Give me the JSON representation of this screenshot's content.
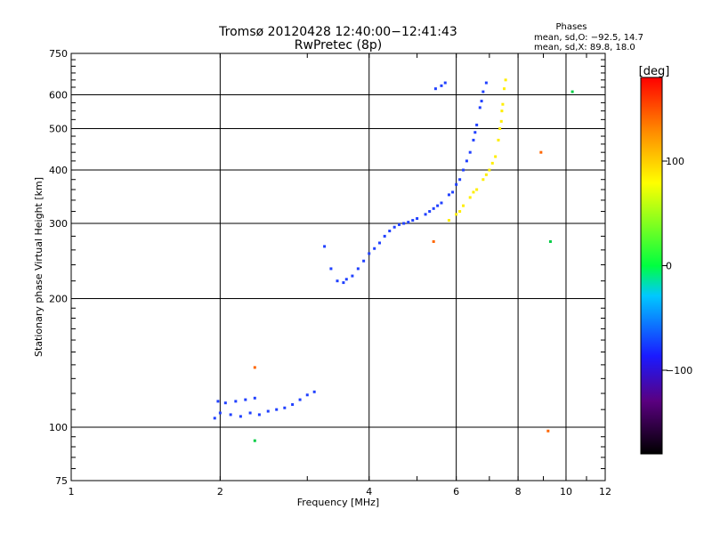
{
  "chart_data": {
    "type": "scatter",
    "title": "Tromsø 20120428 12:40:00−12:41:43",
    "subtitle": "RwPretec (8p)",
    "xlabel": "Frequency [MHz]",
    "ylabel": "Stationary phase Virtual Height [km]",
    "xscale": "log",
    "yscale": "log",
    "xlim": [
      1,
      12
    ],
    "ylim": [
      75,
      750
    ],
    "xticks": [
      1,
      2,
      4,
      6,
      8,
      10,
      12
    ],
    "xtick_labels": [
      "1",
      "2",
      "4",
      "6",
      "8",
      "10",
      "12"
    ],
    "yticks": [
      75,
      100,
      200,
      300,
      400,
      500,
      600,
      750
    ],
    "ytick_labels": [
      "75",
      "100",
      "200",
      "300",
      "400",
      "500",
      "600",
      "750"
    ],
    "grid": true,
    "phases_box": {
      "title": "Phases",
      "line1": "mean, sd,O:  −92.5, 14.7",
      "line2": "mean, sd,X:   89.8, 18.0"
    },
    "colorbar": {
      "label": "[deg]",
      "ticks": [
        100,
        0,
        -100
      ],
      "tick_labels": [
        "100",
        "0",
        "−100"
      ],
      "range": [
        -180,
        180
      ]
    },
    "series": [
      {
        "mode": "O",
        "phase": -100,
        "color": "#2040ff",
        "points": [
          [
            1.95,
            105
          ],
          [
            2.0,
            108
          ],
          [
            2.1,
            107
          ],
          [
            2.2,
            106
          ],
          [
            2.3,
            108
          ],
          [
            2.4,
            107
          ],
          [
            2.5,
            109
          ],
          [
            2.6,
            110
          ],
          [
            2.7,
            111
          ],
          [
            2.8,
            113
          ],
          [
            2.9,
            116
          ],
          [
            3.0,
            119
          ],
          [
            3.1,
            121
          ],
          [
            1.98,
            115
          ],
          [
            2.05,
            114
          ],
          [
            2.15,
            115
          ],
          [
            2.25,
            116
          ],
          [
            2.35,
            117
          ],
          [
            3.25,
            265
          ],
          [
            3.35,
            235
          ],
          [
            3.45,
            220
          ],
          [
            3.55,
            218
          ],
          [
            3.6,
            222
          ],
          [
            3.7,
            226
          ],
          [
            3.8,
            235
          ],
          [
            3.9,
            245
          ],
          [
            4.0,
            255
          ],
          [
            4.1,
            262
          ],
          [
            4.2,
            270
          ],
          [
            4.3,
            280
          ],
          [
            4.4,
            288
          ],
          [
            4.5,
            294
          ],
          [
            4.6,
            298
          ],
          [
            4.7,
            300
          ],
          [
            4.8,
            302
          ],
          [
            4.9,
            305
          ],
          [
            5.0,
            308
          ],
          [
            5.2,
            315
          ],
          [
            5.4,
            325
          ],
          [
            5.6,
            335
          ],
          [
            5.8,
            350
          ],
          [
            6.0,
            370
          ],
          [
            6.2,
            400
          ],
          [
            6.4,
            440
          ],
          [
            6.5,
            470
          ],
          [
            6.6,
            510
          ],
          [
            6.7,
            560
          ],
          [
            6.8,
            610
          ],
          [
            6.9,
            640
          ],
          [
            5.3,
            320
          ],
          [
            5.5,
            330
          ],
          [
            5.9,
            355
          ],
          [
            6.1,
            380
          ],
          [
            6.3,
            420
          ],
          [
            6.55,
            490
          ],
          [
            6.75,
            580
          ],
          [
            5.45,
            620
          ],
          [
            5.6,
            630
          ],
          [
            5.7,
            640
          ]
        ]
      },
      {
        "mode": "X",
        "phase": 95,
        "color": "#ffee00",
        "points": [
          [
            5.8,
            305
          ],
          [
            6.0,
            315
          ],
          [
            6.2,
            330
          ],
          [
            6.4,
            345
          ],
          [
            6.6,
            360
          ],
          [
            6.8,
            380
          ],
          [
            7.0,
            400
          ],
          [
            7.2,
            430
          ],
          [
            7.3,
            470
          ],
          [
            7.4,
            520
          ],
          [
            7.45,
            570
          ],
          [
            7.5,
            620
          ],
          [
            7.55,
            650
          ],
          [
            6.1,
            320
          ],
          [
            6.5,
            355
          ],
          [
            6.9,
            390
          ],
          [
            7.1,
            415
          ],
          [
            7.35,
            500
          ],
          [
            7.42,
            550
          ]
        ]
      },
      {
        "mode": "scattered",
        "phase": 0,
        "color": "#00cc44",
        "points": [
          [
            2.35,
            93
          ],
          [
            9.3,
            272
          ],
          [
            10.3,
            610
          ]
        ]
      },
      {
        "mode": "scattered",
        "phase": 150,
        "color": "#ff6600",
        "points": [
          [
            5.4,
            272
          ],
          [
            8.9,
            440
          ],
          [
            9.2,
            98
          ],
          [
            2.35,
            138
          ]
        ]
      }
    ]
  }
}
